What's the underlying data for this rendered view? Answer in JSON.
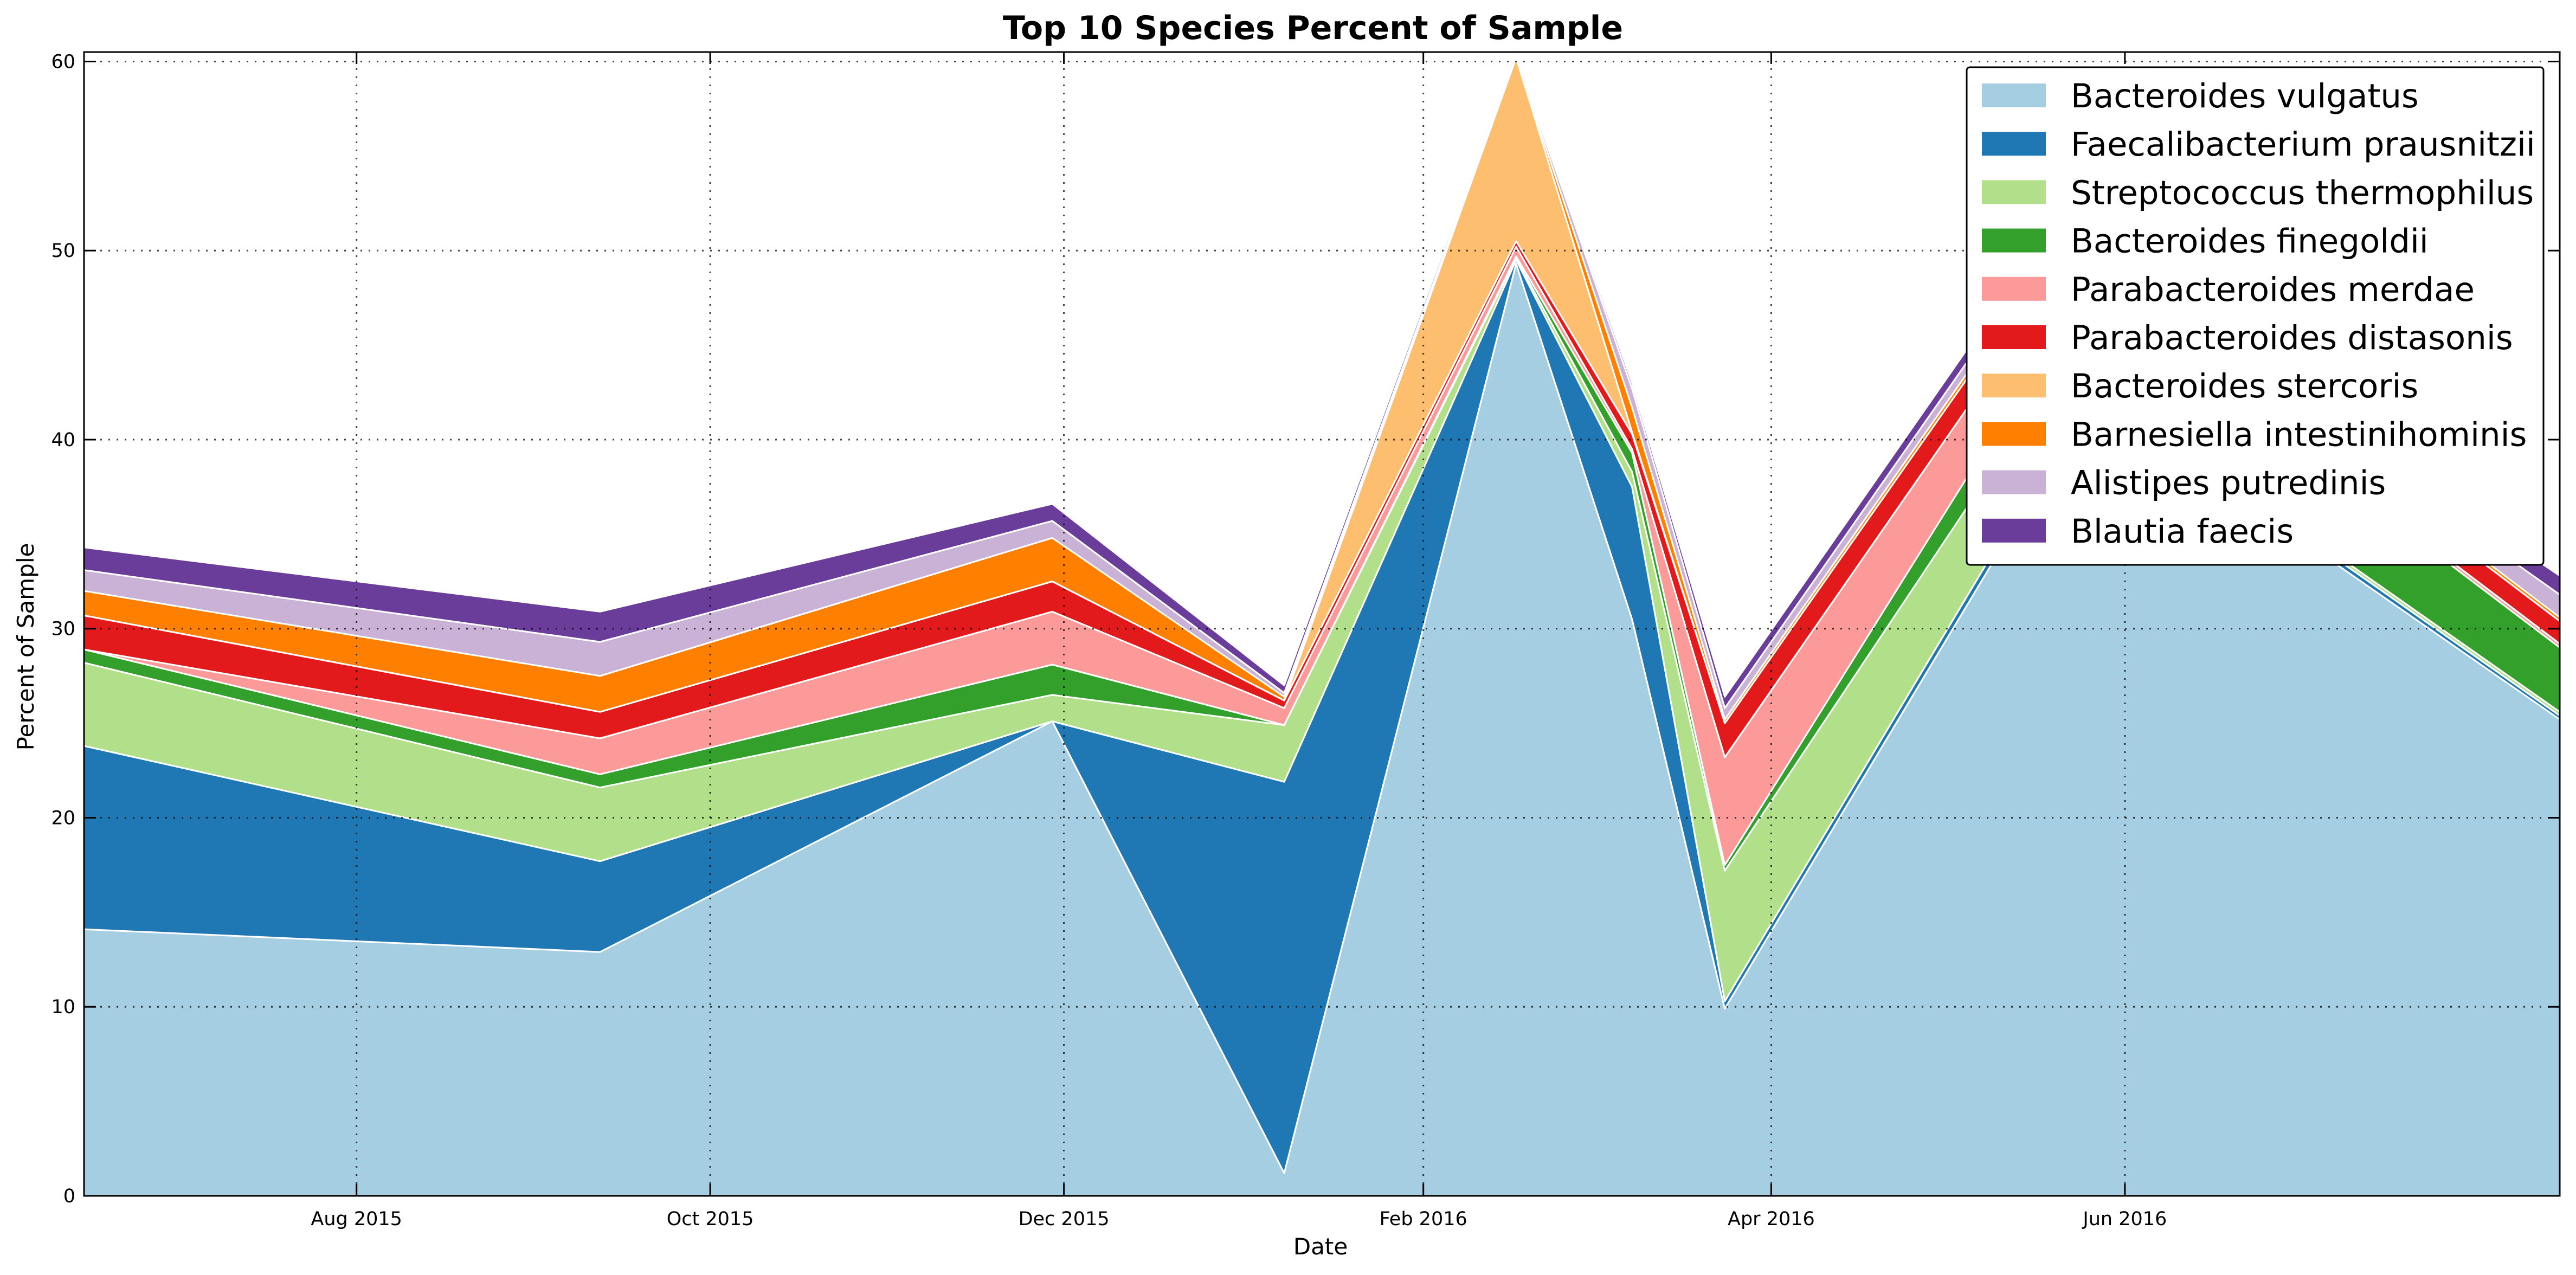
{
  "chart_data": {
    "type": "area",
    "stacked": true,
    "title": "Top 10 Species Percent of Sample",
    "xlabel": "Date",
    "ylabel": "Percent of Sample",
    "x_axis_type": "date",
    "xlim": [
      "2015-06-15",
      "2016-08-15"
    ],
    "ylim": [
      0,
      60.5
    ],
    "x_ticks": [
      {
        "date": "2015-08-01",
        "label": "Aug 2015"
      },
      {
        "date": "2015-10-01",
        "label": "Oct 2015"
      },
      {
        "date": "2015-12-01",
        "label": "Dec 2015"
      },
      {
        "date": "2016-02-01",
        "label": "Feb 2016"
      },
      {
        "date": "2016-04-01",
        "label": "Apr 2016"
      },
      {
        "date": "2016-06-01",
        "label": "Jun 2016"
      }
    ],
    "y_ticks": [
      {
        "value": 0,
        "label": "0"
      },
      {
        "value": 10,
        "label": "10"
      },
      {
        "value": 20,
        "label": "20"
      },
      {
        "value": 30,
        "label": "30"
      },
      {
        "value": 40,
        "label": "40"
      },
      {
        "value": 50,
        "label": "50"
      },
      {
        "value": 60,
        "label": "60"
      }
    ],
    "grid": true,
    "legend_position": "top-right",
    "x": [
      "2015-06-15",
      "2015-09-12",
      "2015-11-29",
      "2016-01-08",
      "2016-02-17",
      "2016-03-08",
      "2016-03-24",
      "2016-05-18",
      "2016-06-30",
      "2016-08-15"
    ],
    "series": [
      {
        "name": "Bacteroides vulgatus",
        "color": "#a6cee3",
        "values": [
          14.1,
          12.9,
          25.1,
          1.2,
          49.3,
          30.5,
          9.9,
          38.0,
          35.0,
          25.2
        ]
      },
      {
        "name": "Faecalibacterium prausnitzii",
        "color": "#1f78b4",
        "values": [
          9.7,
          4.8,
          0.0,
          20.7,
          0.2,
          7.0,
          0.4,
          0.5,
          0.3,
          0.2
        ]
      },
      {
        "name": "Streptococcus thermophilus",
        "color": "#b2df8a",
        "values": [
          4.4,
          3.9,
          1.4,
          3.0,
          0.1,
          0.8,
          6.9,
          4.0,
          0.2,
          0.2
        ]
      },
      {
        "name": "Bacteroides finegoldii",
        "color": "#33a02c",
        "values": [
          0.7,
          0.7,
          1.6,
          0.0,
          0.1,
          1.0,
          0.3,
          2.0,
          4.2,
          3.4
        ]
      },
      {
        "name": "Parabacteroides merdae",
        "color": "#fb9a99",
        "values": [
          0.0,
          1.9,
          2.8,
          0.9,
          0.5,
          0.2,
          5.7,
          3.0,
          0.2,
          0.2
        ]
      },
      {
        "name": "Parabacteroides distasonis",
        "color": "#e31a1c",
        "values": [
          1.8,
          1.4,
          1.6,
          0.4,
          0.3,
          0.8,
          1.8,
          1.5,
          1.2,
          1.2
        ]
      },
      {
        "name": "Bacteroides stercoris",
        "color": "#fdbf6f",
        "values": [
          0.0,
          0.0,
          0.0,
          0.0,
          9.7,
          0.1,
          0.0,
          0.0,
          0.0,
          0.0
        ]
      },
      {
        "name": "Barnesiella intestinihominis",
        "color": "#ff7f00",
        "values": [
          1.3,
          1.9,
          2.3,
          0.2,
          0.0,
          1.3,
          0.2,
          0.3,
          0.2,
          0.2
        ]
      },
      {
        "name": "Alistipes putredinis",
        "color": "#cab2d6",
        "values": [
          1.1,
          1.8,
          0.9,
          0.2,
          0.1,
          1.0,
          0.6,
          0.6,
          0.5,
          1.2
        ]
      },
      {
        "name": "Blautia faecis",
        "color": "#6a3d9a",
        "values": [
          1.2,
          1.6,
          0.9,
          0.4,
          0.2,
          0.3,
          0.6,
          0.7,
          0.6,
          1.0
        ]
      }
    ]
  }
}
